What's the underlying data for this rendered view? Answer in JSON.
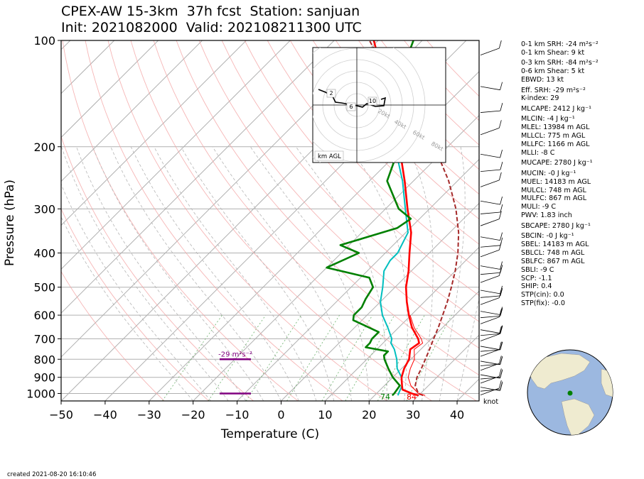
{
  "title": {
    "line1": "CPEX-AW 15-3km  37h fcst  Station: sanjuan",
    "line2": "Init: 2021082000  Valid: 202108211300 UTC"
  },
  "chart_data": {
    "type": "line",
    "subtype": "skew-t log-p sounding",
    "xlabel": "Temperature (C)",
    "ylabel": "Pressure (hPa)",
    "xlim": [
      -50,
      45
    ],
    "ylim": [
      1050,
      100
    ],
    "y_scale": "log",
    "grid": true,
    "x_ticks": [
      -50,
      -40,
      -30,
      -20,
      -10,
      0,
      10,
      20,
      30,
      40
    ],
    "y_ticks": [
      100,
      200,
      300,
      400,
      500,
      600,
      700,
      800,
      900,
      1000
    ],
    "temperature": {
      "color": "#ff0000",
      "points": [
        [
          1013,
          30
        ],
        [
          1000,
          28
        ],
        [
          975,
          25
        ],
        [
          950,
          24
        ],
        [
          925,
          23
        ],
        [
          900,
          22
        ],
        [
          850,
          20.6
        ],
        [
          800,
          19.6
        ],
        [
          750,
          17.6
        ],
        [
          720,
          18.2
        ],
        [
          700,
          17
        ],
        [
          650,
          13
        ],
        [
          600,
          9.5
        ],
        [
          550,
          6
        ],
        [
          500,
          2.5
        ],
        [
          450,
          -0.6
        ],
        [
          400,
          -4.5
        ],
        [
          350,
          -8.8
        ],
        [
          300,
          -15
        ],
        [
          250,
          -22
        ],
        [
          200,
          -31
        ],
        [
          170,
          -38
        ],
        [
          150,
          -44
        ],
        [
          120,
          -53
        ],
        [
          100,
          -61
        ]
      ]
    },
    "virtual_temperature": {
      "color": "#ff0000",
      "points": [
        [
          1013,
          31.5
        ],
        [
          1000,
          29.5
        ],
        [
          950,
          26
        ],
        [
          900,
          23.5
        ],
        [
          850,
          22
        ],
        [
          800,
          20.8
        ],
        [
          750,
          18.5
        ],
        [
          720,
          19
        ],
        [
          700,
          17.7
        ],
        [
          650,
          13.5
        ],
        [
          600,
          9.8
        ]
      ]
    },
    "dewpoint": {
      "color": "#008000",
      "points": [
        [
          1013,
          24
        ],
        [
          1000,
          24
        ],
        [
          950,
          23.5
        ],
        [
          900,
          20
        ],
        [
          850,
          17
        ],
        [
          800,
          14
        ],
        [
          780,
          13
        ],
        [
          760,
          13
        ],
        [
          740,
          7
        ],
        [
          720,
          7
        ],
        [
          700,
          6.5
        ],
        [
          670,
          6.5
        ],
        [
          620,
          -2
        ],
        [
          600,
          -3
        ],
        [
          570,
          -3
        ],
        [
          540,
          -4
        ],
        [
          500,
          -5
        ],
        [
          470,
          -8
        ],
        [
          440,
          -20
        ],
        [
          400,
          -16
        ],
        [
          380,
          -22
        ],
        [
          340,
          -13
        ],
        [
          320,
          -12
        ],
        [
          300,
          -17
        ],
        [
          250,
          -26
        ],
        [
          200,
          -31
        ],
        [
          180,
          -35
        ],
        [
          160,
          -40
        ],
        [
          140,
          -47
        ],
        [
          120,
          -48
        ],
        [
          100,
          -52
        ]
      ]
    },
    "wetbulb": {
      "color": "#00bfbf",
      "points": [
        [
          1013,
          25.3
        ],
        [
          1000,
          25
        ],
        [
          950,
          24
        ],
        [
          900,
          22
        ],
        [
          850,
          19
        ],
        [
          800,
          16.8
        ],
        [
          750,
          14
        ],
        [
          720,
          11.8
        ],
        [
          700,
          11
        ],
        [
          650,
          7.5
        ],
        [
          600,
          3.5
        ],
        [
          550,
          0
        ],
        [
          500,
          -2.8
        ],
        [
          450,
          -6.2
        ],
        [
          420,
          -7.2
        ],
        [
          400,
          -7.2
        ],
        [
          350,
          -9.5
        ],
        [
          300,
          -15.5
        ],
        [
          250,
          -22.5
        ],
        [
          200,
          -32
        ],
        [
          170,
          -39
        ],
        [
          150,
          -45
        ],
        [
          120,
          -53
        ],
        [
          100,
          -61
        ]
      ]
    },
    "parcel": {
      "color": "#a52a2a",
      "style": "dashed",
      "points": [
        [
          1013,
          31
        ],
        [
          1000,
          29.5
        ],
        [
          950,
          27
        ],
        [
          900,
          25.5
        ],
        [
          850,
          24.5
        ],
        [
          800,
          23.3
        ],
        [
          750,
          22
        ],
        [
          700,
          20.5
        ],
        [
          650,
          19
        ],
        [
          600,
          17.2
        ],
        [
          550,
          15.2
        ],
        [
          500,
          12.8
        ],
        [
          450,
          10
        ],
        [
          400,
          6.5
        ],
        [
          350,
          2
        ],
        [
          300,
          -4
        ],
        [
          250,
          -12
        ],
        [
          200,
          -23
        ],
        [
          150,
          -40
        ],
        [
          100,
          -62
        ]
      ]
    },
    "surface_labels": {
      "dewpoint": "74",
      "temperature": "84"
    },
    "srh_label": "-29 m²s⁻²",
    "effective_inflow_layer": {
      "color": "#800080",
      "bottom_hPa": 1000,
      "top_hPa": 800
    },
    "wind_unit_label": "knot",
    "hodograph": {
      "ring_labels": [
        "20kt",
        "40kt",
        "60kt",
        "80kt"
      ],
      "height_labels": [
        "2",
        "6",
        "10"
      ],
      "footer": "km AGL"
    },
    "wind_barbs_shown": true
  },
  "stats": [
    "0-1 km SRH: -24 m²s⁻²",
    "0-1 km Shear: 9 kt",
    "0-3 km SRH: -84 m²s⁻²",
    "0-6 km Shear: 5 kt",
    "EBWD: 13 kt",
    "Eff. SRH: -29 m²s⁻²",
    "K-index: 29",
    "MLCAPE: 2412 J kg⁻¹",
    "MLCIN: -4 J kg⁻¹",
    "MLEL: 13984 m AGL",
    "MLLCL: 775 m AGL",
    "MLLFC: 1166 m AGL",
    "MLLI: -8 C",
    "MUCAPE: 2780 J kg⁻¹",
    "MUCIN: -0 J kg⁻¹",
    "MUEL: 14183 m AGL",
    "MULCL: 748 m AGL",
    "MULFC: 867 m AGL",
    "MULI: -9 C",
    "PWV: 1.83 inch",
    "SBCAPE: 2780 J kg⁻¹",
    "SBCIN: -0 J kg⁻¹",
    "SBEL: 14183 m AGL",
    "SBLCL: 748 m AGL",
    "SBLFC: 867 m AGL",
    "SBLI: -9 C",
    "SCP: -1.1",
    "SHIP: 0.4",
    "STP(cin): 0.0",
    "STP(fix): -0.0"
  ],
  "created": "created 2021-08-20 16:10:46",
  "globe": {
    "land_color": "#efebd0",
    "ocean_color": "#9cb8e0",
    "marker_color": "#008000"
  }
}
